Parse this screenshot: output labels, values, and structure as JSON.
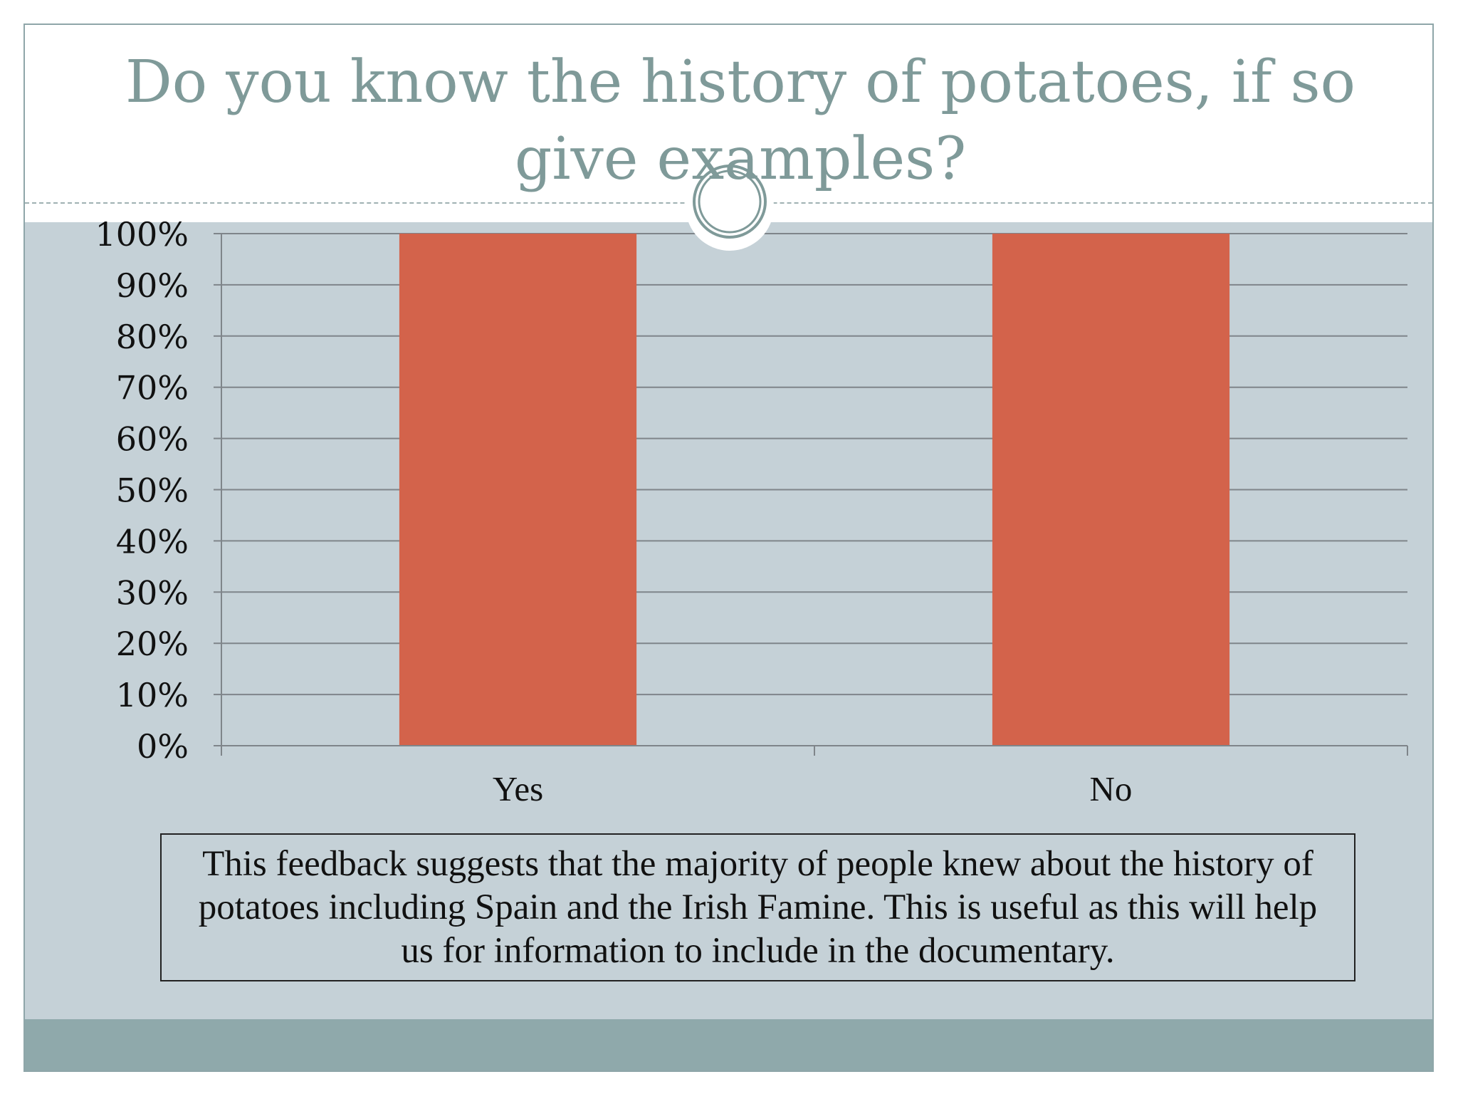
{
  "slide": {
    "title": "Do you know the history of potatoes, if so give examples?",
    "caption": "This feedback suggests that the majority of people knew about the history of potatoes including Spain and the Irish Famine. This is useful as this will help us for information to include in the documentary."
  },
  "colors": {
    "bar": "#d3634b",
    "title": "#7f9a99",
    "content_bg": "#c5d1d7",
    "footer": "#8fa9ab",
    "gridline": "#7f858a"
  },
  "chart_data": {
    "type": "bar",
    "categories": [
      "Yes",
      "No"
    ],
    "values": [
      100,
      100
    ],
    "ylim": [
      0,
      100
    ],
    "y_ticks": [
      0,
      10,
      20,
      30,
      40,
      50,
      60,
      70,
      80,
      90,
      100
    ],
    "y_tick_labels": [
      "0%",
      "10%",
      "20%",
      "30%",
      "40%",
      "50%",
      "60%",
      "70%",
      "80%",
      "90%",
      "100%"
    ],
    "title": "",
    "xlabel": "",
    "ylabel": "",
    "grid": true,
    "legend": "none"
  }
}
